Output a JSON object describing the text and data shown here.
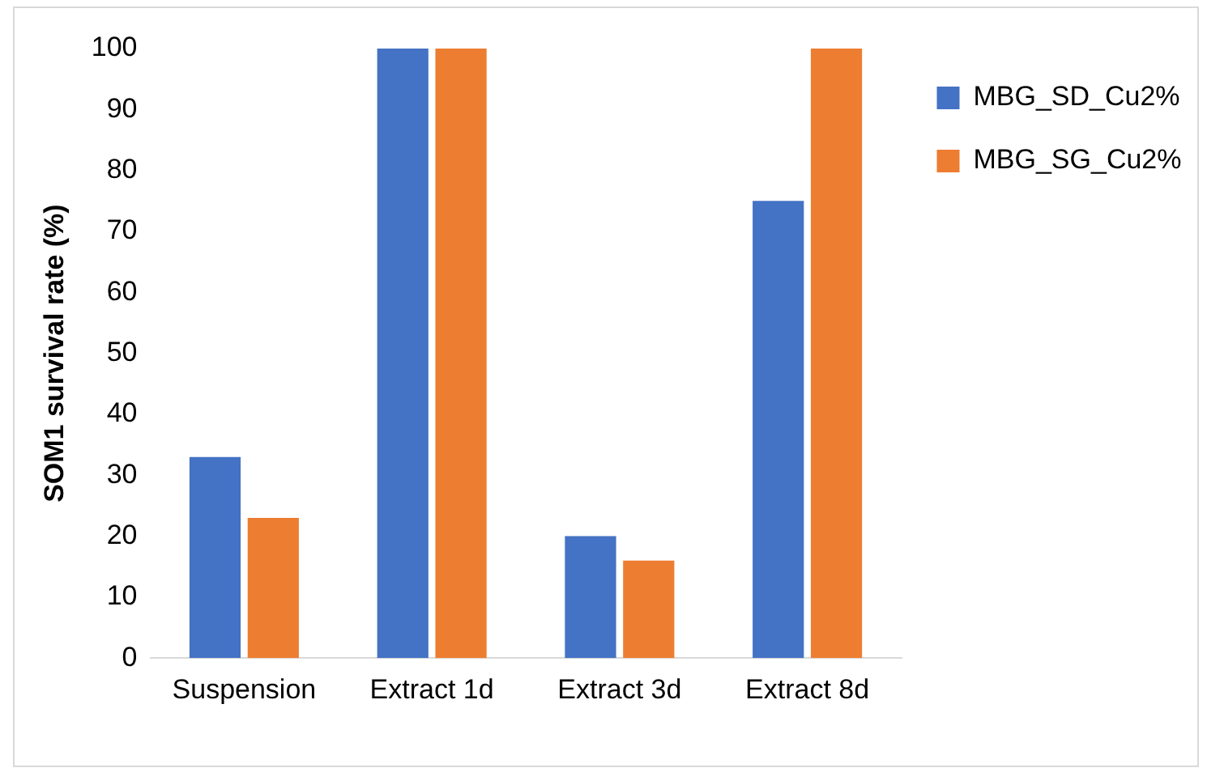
{
  "chart_data": {
    "type": "bar",
    "ylabel": "SOM1 survival rate (%)",
    "categories": [
      "Suspension",
      "Extract 1d",
      "Extract 3d",
      "Extract 8d"
    ],
    "series": [
      {
        "name": "MBG_SD_Cu2%",
        "color": "#4472c4",
        "values": [
          33,
          100,
          20,
          75
        ]
      },
      {
        "name": "MBG_SG_Cu2%",
        "color": "#ed7d31",
        "values": [
          23,
          100,
          16,
          100
        ]
      }
    ],
    "ylim": [
      0,
      100
    ],
    "yticks": [
      0,
      10,
      20,
      30,
      40,
      50,
      60,
      70,
      80,
      90,
      100
    ],
    "grid": false,
    "legend": "top right"
  }
}
